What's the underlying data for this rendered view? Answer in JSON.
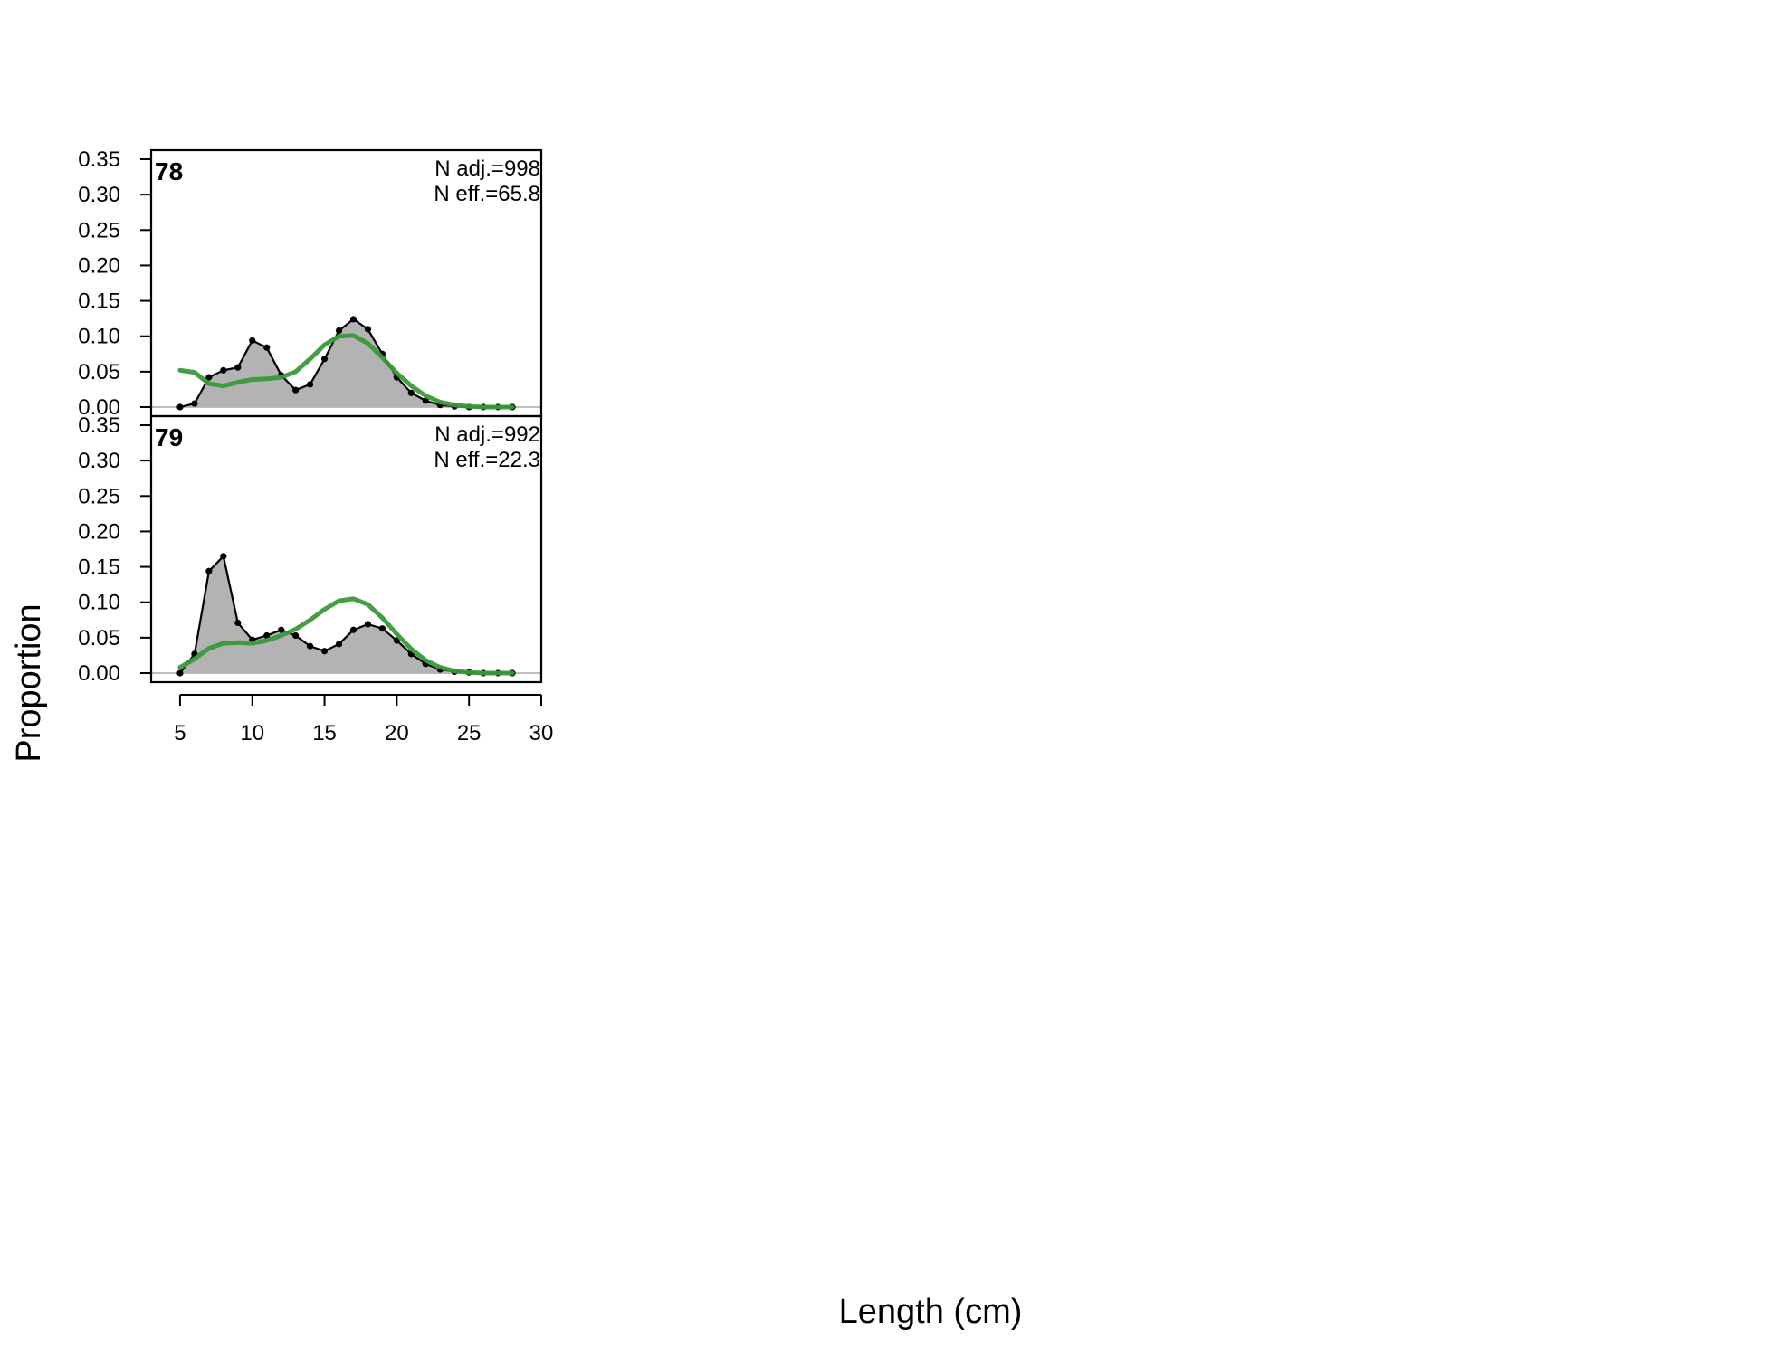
{
  "chart_data": {
    "type": "area",
    "xlabel": "Length (cm)",
    "ylabel": "Proportion",
    "xlim": [
      3,
      30
    ],
    "ylim": [
      0,
      0.35
    ],
    "x_ticks": [
      "5",
      "10",
      "15",
      "20",
      "25",
      "30"
    ],
    "y_ticks": [
      "0.00",
      "0.05",
      "0.10",
      "0.15",
      "0.20",
      "0.25",
      "0.30",
      "0.35"
    ],
    "grid": false,
    "colors": {
      "observed_fill": "#b3b3b3",
      "observed_line": "#000000",
      "expected_line": "#3a9a3a",
      "zero_line": "#bdbdbd"
    },
    "panels": [
      {
        "label": "78",
        "n_adj": "N adj.=998",
        "n_eff": "N eff.=65.8",
        "observed": {
          "x": [
            5,
            6,
            7,
            8,
            9,
            10,
            11,
            12,
            13,
            14,
            15,
            16,
            17,
            18,
            19,
            20,
            21,
            22,
            23,
            24,
            25,
            26,
            27,
            28
          ],
          "y": [
            0.0,
            0.005,
            0.042,
            0.052,
            0.056,
            0.094,
            0.084,
            0.045,
            0.024,
            0.032,
            0.068,
            0.108,
            0.124,
            0.11,
            0.075,
            0.042,
            0.02,
            0.009,
            0.003,
            0.001,
            0.0,
            0.0,
            0.0,
            0.0
          ]
        },
        "expected": {
          "x": [
            5,
            6,
            7,
            8,
            9,
            10,
            11,
            12,
            13,
            14,
            15,
            16,
            17,
            18,
            19,
            20,
            21,
            22,
            23,
            24,
            25,
            26,
            27,
            28
          ],
          "y": [
            0.052,
            0.049,
            0.033,
            0.03,
            0.035,
            0.039,
            0.04,
            0.042,
            0.05,
            0.068,
            0.088,
            0.1,
            0.101,
            0.09,
            0.07,
            0.048,
            0.03,
            0.016,
            0.007,
            0.003,
            0.001,
            0.0,
            0.0,
            0.0
          ]
        }
      },
      {
        "label": "79",
        "n_adj": "N adj.=992",
        "n_eff": "N eff.=22.3",
        "observed": {
          "x": [
            5,
            6,
            7,
            8,
            9,
            10,
            11,
            12,
            13,
            14,
            15,
            16,
            17,
            18,
            19,
            20,
            21,
            22,
            23,
            24,
            25,
            26,
            27,
            28
          ],
          "y": [
            0.0,
            0.027,
            0.144,
            0.165,
            0.071,
            0.047,
            0.053,
            0.061,
            0.053,
            0.038,
            0.031,
            0.041,
            0.061,
            0.069,
            0.063,
            0.046,
            0.027,
            0.013,
            0.005,
            0.002,
            0.001,
            0.0,
            0.0,
            0.0
          ]
        },
        "expected": {
          "x": [
            5,
            6,
            7,
            8,
            9,
            10,
            11,
            12,
            13,
            14,
            15,
            16,
            17,
            18,
            19,
            20,
            21,
            22,
            23,
            24,
            25,
            26,
            27,
            28
          ],
          "y": [
            0.008,
            0.02,
            0.035,
            0.042,
            0.043,
            0.042,
            0.046,
            0.053,
            0.062,
            0.075,
            0.09,
            0.102,
            0.105,
            0.097,
            0.078,
            0.055,
            0.034,
            0.018,
            0.008,
            0.003,
            0.001,
            0.0,
            0.0,
            0.0
          ]
        }
      }
    ]
  }
}
